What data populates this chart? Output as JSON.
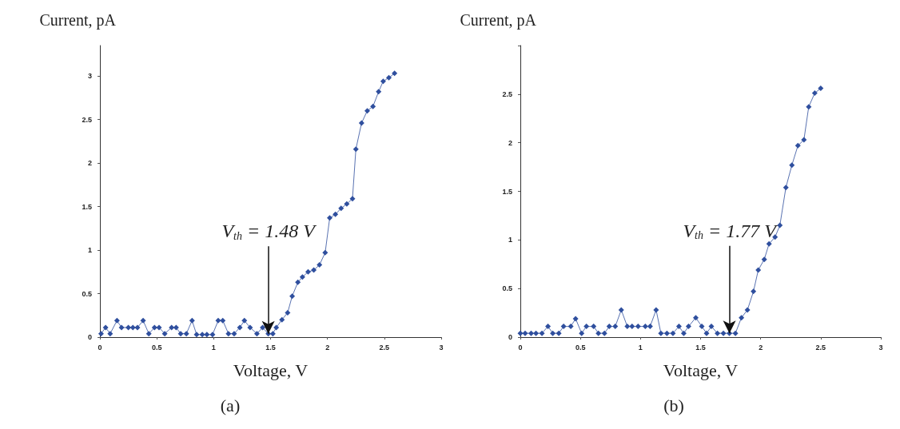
{
  "chart_data": [
    {
      "type": "line",
      "title": "(a)",
      "xlabel": "Voltage, V",
      "ylabel": "Current, pA",
      "marker": "diamond",
      "xlim": [
        0,
        3
      ],
      "xticks": [
        0,
        0.5,
        1,
        1.5,
        2,
        2.5,
        3
      ],
      "ylim": [
        0,
        3.35
      ],
      "yticks": [
        0,
        0.5,
        1,
        1.5,
        2,
        2.5,
        3
      ],
      "annotations": [
        {
          "text": "V$_{th}$ = 1.48 V",
          "x": 1.48,
          "y": 0.04
        }
      ],
      "series": [
        {
          "color": "#2f4f9e",
          "x": [
            0.01,
            0.05,
            0.09,
            0.15,
            0.19,
            0.25,
            0.29,
            0.33,
            0.38,
            0.43,
            0.48,
            0.52,
            0.57,
            0.63,
            0.67,
            0.71,
            0.76,
            0.81,
            0.85,
            0.9,
            0.94,
            0.99,
            1.04,
            1.08,
            1.13,
            1.18,
            1.23,
            1.27,
            1.32,
            1.38,
            1.43,
            1.48,
            1.52,
            1.55,
            1.6,
            1.65,
            1.69,
            1.74,
            1.78,
            1.83,
            1.88,
            1.93,
            1.98,
            2.02,
            2.07,
            2.12,
            2.17,
            2.22,
            2.25,
            2.3,
            2.35,
            2.4,
            2.45,
            2.49,
            2.54,
            2.59
          ],
          "values": [
            0.04,
            0.11,
            0.04,
            0.19,
            0.11,
            0.11,
            0.11,
            0.11,
            0.19,
            0.04,
            0.11,
            0.11,
            0.04,
            0.11,
            0.11,
            0.04,
            0.04,
            0.19,
            0.03,
            0.03,
            0.03,
            0.03,
            0.19,
            0.19,
            0.04,
            0.04,
            0.11,
            0.19,
            0.11,
            0.04,
            0.11,
            0.04,
            0.04,
            0.11,
            0.2,
            0.28,
            0.47,
            0.63,
            0.69,
            0.75,
            0.77,
            0.83,
            0.97,
            1.37,
            1.41,
            1.48,
            1.53,
            1.59,
            2.16,
            2.46,
            2.6,
            2.65,
            2.82,
            2.94,
            2.98,
            3.03
          ]
        }
      ]
    },
    {
      "type": "line",
      "title": "(b)",
      "xlabel": "Voltage, V",
      "ylabel": "Current, pA",
      "marker": "diamond",
      "xlim": [
        0,
        3
      ],
      "xticks": [
        0,
        0.5,
        1,
        1.5,
        2,
        2.5,
        3
      ],
      "ylim": [
        0,
        3
      ],
      "yticks": [
        0,
        0.5,
        1,
        1.5,
        2,
        2.5,
        {
          "value": 3,
          "label": null
        }
      ],
      "annotations": [
        {
          "text": "V$_{th}$ = 1.77 V",
          "x": 1.74,
          "y": 0.04
        }
      ],
      "series": [
        {
          "color": "#2f4f9e",
          "x": [
            0,
            0.04,
            0.09,
            0.13,
            0.18,
            0.23,
            0.27,
            0.32,
            0.36,
            0.42,
            0.46,
            0.51,
            0.55,
            0.61,
            0.65,
            0.7,
            0.74,
            0.79,
            0.84,
            0.89,
            0.93,
            0.98,
            1.04,
            1.08,
            1.13,
            1.17,
            1.22,
            1.27,
            1.32,
            1.36,
            1.4,
            1.46,
            1.51,
            1.55,
            1.59,
            1.64,
            1.69,
            1.74,
            1.79,
            1.84,
            1.89,
            1.94,
            1.98,
            2.03,
            2.07,
            2.12,
            2.16,
            2.21,
            2.26,
            2.31,
            2.36,
            2.4,
            2.45,
            2.5
          ],
          "values": [
            0.04,
            0.04,
            0.04,
            0.04,
            0.04,
            0.11,
            0.04,
            0.04,
            0.11,
            0.11,
            0.19,
            0.04,
            0.11,
            0.11,
            0.04,
            0.04,
            0.11,
            0.11,
            0.28,
            0.11,
            0.11,
            0.11,
            0.11,
            0.11,
            0.28,
            0.04,
            0.04,
            0.04,
            0.11,
            0.04,
            0.11,
            0.2,
            0.11,
            0.04,
            0.11,
            0.04,
            0.04,
            0.04,
            0.04,
            0.2,
            0.28,
            0.47,
            0.69,
            0.8,
            0.96,
            1.03,
            1.15,
            1.54,
            1.77,
            1.97,
            2.03,
            2.37,
            2.51,
            2.56
          ]
        }
      ]
    }
  ]
}
